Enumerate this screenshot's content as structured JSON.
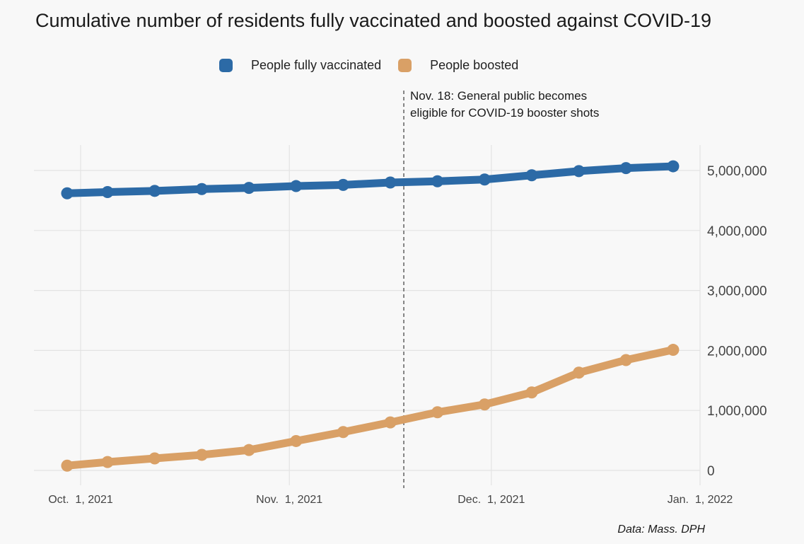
{
  "chart_data": {
    "type": "line",
    "title": "Cumulative number of residents fully vaccinated and boosted against COVID-19",
    "xlabel": "",
    "ylabel": "",
    "x": [
      "2021-09-29",
      "2021-10-05",
      "2021-10-12",
      "2021-10-19",
      "2021-10-26",
      "2021-11-02",
      "2021-11-09",
      "2021-11-16",
      "2021-11-23",
      "2021-11-30",
      "2021-12-07",
      "2021-12-14",
      "2021-12-21",
      "2021-12-28"
    ],
    "series": [
      {
        "name": "People fully vaccinated",
        "color": "#2c6aa6",
        "values": [
          4620000,
          4640000,
          4660000,
          4690000,
          4710000,
          4740000,
          4760000,
          4800000,
          4820000,
          4850000,
          4920000,
          4990000,
          5040000,
          5070000
        ]
      },
      {
        "name": "People boosted",
        "color": "#d9a066",
        "values": [
          80000,
          140000,
          200000,
          260000,
          340000,
          490000,
          640000,
          800000,
          970000,
          1100000,
          1300000,
          1630000,
          1840000,
          2010000
        ]
      }
    ],
    "xlim": [
      "2021-09-29",
      "2022-01-04"
    ],
    "ylim": [
      0,
      5150000
    ],
    "x_ticks": [
      {
        "date": "2021-10-01",
        "label": "Oct.  1, 2021"
      },
      {
        "date": "2021-11-01",
        "label": "Nov.  1, 2021"
      },
      {
        "date": "2021-12-01",
        "label": "Dec.  1, 2021"
      },
      {
        "date": "2022-01-01",
        "label": "Jan.  1, 2022"
      }
    ],
    "y_ticks": [
      {
        "value": 0,
        "label": "0"
      },
      {
        "value": 1000000,
        "label": "1,000,000"
      },
      {
        "value": 2000000,
        "label": "2,000,000"
      },
      {
        "value": 3000000,
        "label": "3,000,000"
      },
      {
        "value": 4000000,
        "label": "4,000,000"
      },
      {
        "value": 5000000,
        "label": "5,000,000"
      }
    ],
    "y_axis_side": "right",
    "grid": true,
    "legend_position": "top",
    "annotation": {
      "date": "2021-11-18",
      "line_1": "Nov. 18: General public becomes",
      "line_2": "eligible for COVID-19 booster shots"
    }
  },
  "source": "Data: Mass. DPH"
}
